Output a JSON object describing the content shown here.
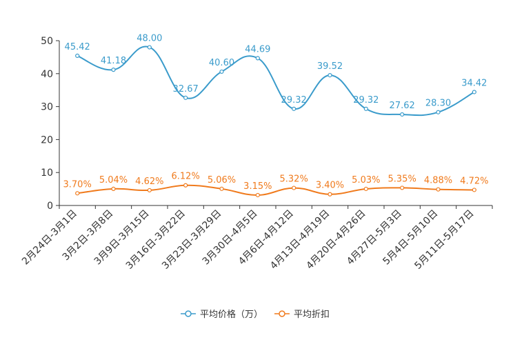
{
  "chart_data": {
    "type": "line",
    "categories": [
      "2月24日-3月1日",
      "3月2日-3月8日",
      "3月9日-3月15日",
      "3月16日-3月22日",
      "3月23日-3月29日",
      "3月30日-4月5日",
      "4月6日-4月12日",
      "4月13日-4月19日",
      "4月20日-4月26日",
      "4月27日-5月3日",
      "5月4日-5月10日",
      "5月11日-5月17日"
    ],
    "ylim": [
      0,
      50
    ],
    "yticks": [
      "0",
      "10",
      "20",
      "30",
      "40",
      "50"
    ],
    "smooth": true,
    "legend_position": "bottom-center",
    "series": [
      {
        "name": "平均价格（万）",
        "color": "#3a9bcb",
        "values": [
          45.42,
          41.18,
          48.0,
          32.67,
          40.6,
          44.69,
          29.32,
          39.52,
          29.32,
          27.62,
          28.3,
          34.42
        ],
        "labels": [
          "45.42",
          "41.18",
          "48.00",
          "32.67",
          "40.60",
          "44.69",
          "29.32",
          "39.52",
          "29.32",
          "27.62",
          "28.30",
          "34.42"
        ]
      },
      {
        "name": "平均折扣",
        "color": "#f07a1c",
        "values": [
          3.7,
          5.04,
          4.62,
          6.12,
          5.06,
          3.15,
          5.32,
          3.4,
          5.03,
          5.35,
          4.88,
          4.72
        ],
        "labels": [
          "3.70%",
          "5.04%",
          "4.62%",
          "6.12%",
          "5.06%",
          "3.15%",
          "5.32%",
          "3.40%",
          "5.03%",
          "5.35%",
          "4.88%",
          "4.72%"
        ]
      }
    ]
  }
}
